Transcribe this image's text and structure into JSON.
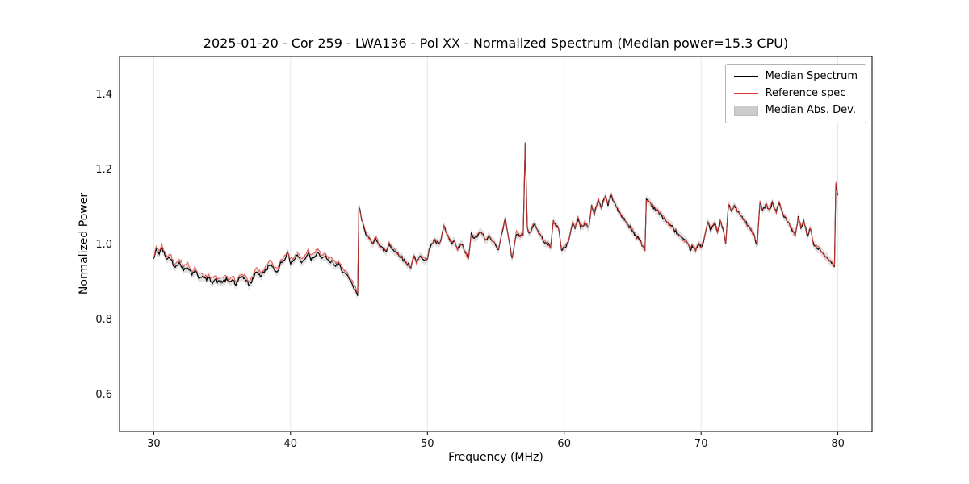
{
  "title": "2025-01-20 - Cor 259 - LWA136 - Pol XX - Normalized Spectrum (Median power=15.3 CPU)",
  "chart_data": {
    "type": "line",
    "title": "2025-01-20 - Cor 259 - LWA136 - Pol XX - Normalized Spectrum (Median power=15.3 CPU)",
    "xlabel": "Frequency (MHz)",
    "ylabel": "Normalized Power",
    "xlim": [
      27.5,
      82.5
    ],
    "ylim": [
      0.5,
      1.5
    ],
    "xticks": [
      30,
      40,
      50,
      60,
      70,
      80
    ],
    "yticks": [
      0.6,
      0.8,
      1.0,
      1.2,
      1.4
    ],
    "grid": true,
    "grid_color": "#e6e6e6",
    "legend_position": "upper right",
    "series": [
      {
        "name": "Median Spectrum",
        "color": "#000000",
        "points": [
          [
            30.0,
            0.96
          ],
          [
            30.2,
            0.985
          ],
          [
            30.4,
            0.975
          ],
          [
            30.6,
            0.99
          ],
          [
            30.8,
            0.97
          ],
          [
            31.0,
            0.96
          ],
          [
            31.2,
            0.965
          ],
          [
            31.5,
            0.94
          ],
          [
            31.8,
            0.95
          ],
          [
            32.0,
            0.945
          ],
          [
            32.2,
            0.93
          ],
          [
            32.5,
            0.94
          ],
          [
            32.8,
            0.92
          ],
          [
            33.0,
            0.93
          ],
          [
            33.3,
            0.91
          ],
          [
            33.5,
            0.915
          ],
          [
            33.8,
            0.905
          ],
          [
            34.0,
            0.91
          ],
          [
            34.3,
            0.9
          ],
          [
            34.5,
            0.905
          ],
          [
            34.8,
            0.898
          ],
          [
            35.0,
            0.9
          ],
          [
            35.3,
            0.905
          ],
          [
            35.5,
            0.898
          ],
          [
            35.8,
            0.905
          ],
          [
            36.0,
            0.89
          ],
          [
            36.3,
            0.908
          ],
          [
            36.5,
            0.915
          ],
          [
            36.8,
            0.9
          ],
          [
            37.0,
            0.89
          ],
          [
            37.3,
            0.91
          ],
          [
            37.5,
            0.928
          ],
          [
            37.8,
            0.915
          ],
          [
            38.0,
            0.922
          ],
          [
            38.3,
            0.935
          ],
          [
            38.5,
            0.948
          ],
          [
            38.8,
            0.93
          ],
          [
            39.0,
            0.925
          ],
          [
            39.3,
            0.95
          ],
          [
            39.5,
            0.958
          ],
          [
            39.8,
            0.975
          ],
          [
            40.0,
            0.95
          ],
          [
            40.3,
            0.96
          ],
          [
            40.5,
            0.972
          ],
          [
            40.8,
            0.95
          ],
          [
            41.0,
            0.958
          ],
          [
            41.3,
            0.978
          ],
          [
            41.5,
            0.96
          ],
          [
            41.8,
            0.97
          ],
          [
            42.0,
            0.98
          ],
          [
            42.3,
            0.958
          ],
          [
            42.5,
            0.97
          ],
          [
            42.8,
            0.95
          ],
          [
            43.0,
            0.955
          ],
          [
            43.3,
            0.94
          ],
          [
            43.5,
            0.945
          ],
          [
            43.8,
            0.93
          ],
          [
            44.0,
            0.92
          ],
          [
            44.3,
            0.905
          ],
          [
            44.6,
            0.885
          ],
          [
            44.9,
            0.862
          ],
          [
            45.0,
            1.1
          ],
          [
            45.2,
            1.065
          ],
          [
            45.5,
            1.03
          ],
          [
            45.8,
            1.01
          ],
          [
            46.0,
            1.0
          ],
          [
            46.2,
            1.02
          ],
          [
            46.5,
            0.995
          ],
          [
            46.8,
            0.985
          ],
          [
            47.0,
            0.98
          ],
          [
            47.2,
            1.0
          ],
          [
            47.5,
            0.985
          ],
          [
            47.8,
            0.975
          ],
          [
            48.0,
            0.97
          ],
          [
            48.3,
            0.955
          ],
          [
            48.6,
            0.945
          ],
          [
            48.8,
            0.938
          ],
          [
            49.0,
            0.968
          ],
          [
            49.2,
            0.95
          ],
          [
            49.5,
            0.968
          ],
          [
            49.8,
            0.96
          ],
          [
            50.0,
            0.958
          ],
          [
            50.2,
            0.995
          ],
          [
            50.5,
            1.01
          ],
          [
            50.8,
            1.0
          ],
          [
            51.0,
            1.008
          ],
          [
            51.2,
            1.048
          ],
          [
            51.5,
            1.02
          ],
          [
            51.8,
            1.0
          ],
          [
            52.0,
            1.005
          ],
          [
            52.2,
            0.985
          ],
          [
            52.5,
            1.0
          ],
          [
            52.8,
            0.975
          ],
          [
            53.0,
            0.96
          ],
          [
            53.2,
            1.025
          ],
          [
            53.5,
            1.015
          ],
          [
            53.8,
            1.028
          ],
          [
            54.0,
            1.03
          ],
          [
            54.2,
            1.01
          ],
          [
            54.5,
            1.02
          ],
          [
            54.8,
            1.005
          ],
          [
            55.0,
            1.0
          ],
          [
            55.2,
            0.985
          ],
          [
            55.5,
            1.04
          ],
          [
            55.7,
            1.068
          ],
          [
            56.0,
            1.0
          ],
          [
            56.2,
            0.962
          ],
          [
            56.5,
            1.03
          ],
          [
            56.8,
            1.02
          ],
          [
            57.0,
            1.025
          ],
          [
            57.15,
            1.27
          ],
          [
            57.3,
            1.04
          ],
          [
            57.5,
            1.03
          ],
          [
            57.8,
            1.055
          ],
          [
            58.0,
            1.04
          ],
          [
            58.3,
            1.02
          ],
          [
            58.5,
            1.01
          ],
          [
            58.8,
            1.0
          ],
          [
            59.0,
            0.99
          ],
          [
            59.2,
            1.06
          ],
          [
            59.4,
            1.05
          ],
          [
            59.6,
            1.04
          ],
          [
            59.8,
            0.985
          ],
          [
            60.0,
            0.99
          ],
          [
            60.3,
            1.005
          ],
          [
            60.6,
            1.055
          ],
          [
            60.8,
            1.04
          ],
          [
            61.0,
            1.07
          ],
          [
            61.2,
            1.045
          ],
          [
            61.5,
            1.055
          ],
          [
            61.8,
            1.045
          ],
          [
            62.0,
            1.1
          ],
          [
            62.2,
            1.08
          ],
          [
            62.5,
            1.12
          ],
          [
            62.7,
            1.095
          ],
          [
            63.0,
            1.13
          ],
          [
            63.2,
            1.105
          ],
          [
            63.4,
            1.13
          ],
          [
            63.6,
            1.115
          ],
          [
            63.8,
            1.1
          ],
          [
            64.0,
            1.085
          ],
          [
            64.3,
            1.07
          ],
          [
            64.6,
            1.055
          ],
          [
            65.0,
            1.035
          ],
          [
            65.3,
            1.02
          ],
          [
            65.6,
            1.005
          ],
          [
            65.9,
            0.982
          ],
          [
            66.0,
            1.12
          ],
          [
            66.3,
            1.11
          ],
          [
            66.6,
            1.095
          ],
          [
            67.0,
            1.08
          ],
          [
            67.3,
            1.068
          ],
          [
            67.6,
            1.055
          ],
          [
            68.0,
            1.04
          ],
          [
            68.3,
            1.028
          ],
          [
            68.6,
            1.015
          ],
          [
            69.0,
            1.0
          ],
          [
            69.2,
            0.985
          ],
          [
            69.4,
            0.995
          ],
          [
            69.6,
            0.98
          ],
          [
            69.8,
            1.0
          ],
          [
            70.0,
            0.99
          ],
          [
            70.2,
            1.01
          ],
          [
            70.5,
            1.06
          ],
          [
            70.7,
            1.04
          ],
          [
            71.0,
            1.055
          ],
          [
            71.2,
            1.03
          ],
          [
            71.4,
            1.06
          ],
          [
            71.6,
            1.04
          ],
          [
            71.8,
            1.0
          ],
          [
            72.0,
            1.105
          ],
          [
            72.2,
            1.09
          ],
          [
            72.5,
            1.1
          ],
          [
            72.8,
            1.08
          ],
          [
            73.0,
            1.07
          ],
          [
            73.3,
            1.055
          ],
          [
            73.6,
            1.04
          ],
          [
            73.9,
            1.02
          ],
          [
            74.1,
            0.998
          ],
          [
            74.3,
            1.11
          ],
          [
            74.5,
            1.095
          ],
          [
            74.8,
            1.105
          ],
          [
            75.0,
            1.09
          ],
          [
            75.2,
            1.11
          ],
          [
            75.5,
            1.085
          ],
          [
            75.7,
            1.11
          ],
          [
            76.0,
            1.08
          ],
          [
            76.3,
            1.06
          ],
          [
            76.6,
            1.04
          ],
          [
            76.9,
            1.022
          ],
          [
            77.1,
            1.07
          ],
          [
            77.3,
            1.045
          ],
          [
            77.5,
            1.06
          ],
          [
            77.8,
            1.02
          ],
          [
            78.0,
            1.042
          ],
          [
            78.2,
            1.0
          ],
          [
            78.5,
            0.99
          ],
          [
            78.8,
            0.98
          ],
          [
            79.0,
            0.972
          ],
          [
            79.3,
            0.958
          ],
          [
            79.6,
            0.945
          ],
          [
            79.75,
            0.94
          ],
          [
            79.85,
            1.16
          ],
          [
            80.0,
            1.13
          ]
        ]
      },
      {
        "name": "Reference spec",
        "color": "#e53935",
        "offset_from_median": {
          "below_45MHz": 0.008,
          "above_45MHz": 0.001
        }
      },
      {
        "name": "Median Abs. Dev.",
        "color": "#c8c8c8",
        "band_halfwidth": 0.011
      }
    ]
  }
}
